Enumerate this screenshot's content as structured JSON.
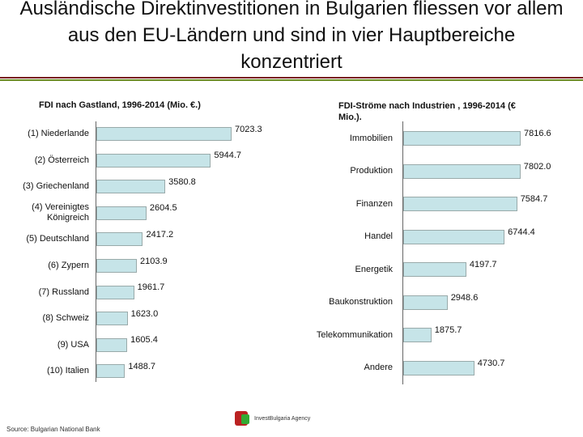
{
  "title": "Ausländische Direktinvestitionen in Bulgarien fliessen vor allem aus den EU-Ländern und sind in vier Hauptbereiche konzentriert",
  "source": "Source: Bulgarian National Bank",
  "logo": "InvestBulgaria Agency",
  "chart_data": [
    {
      "type": "bar",
      "orientation": "horizontal",
      "title": "FDI nach Gastland, 1996-2014 (Mio. €.)",
      "categories": [
        "(1) Niederlande",
        "(2) Österreich",
        "(3) Griechenland",
        "(4) Vereinigtes Königreich",
        "(5) Deutschland",
        "(6) Zypern",
        "(7) Russland",
        "(8) Schweiz",
        "(9) USA",
        "(10) Italien"
      ],
      "values": [
        7023.3,
        5944.7,
        3580.8,
        2604.5,
        2417.2,
        2103.9,
        1961.7,
        1623.0,
        1605.4,
        1488.7
      ],
      "value_labels": [
        "7023.3",
        "5944.7",
        "3580.8",
        "2604.5",
        "2417.2",
        "2103.9",
        "1961.7",
        "1623.0",
        "1605.4",
        "1488.7"
      ],
      "color": "#c6e4e8"
    },
    {
      "type": "bar",
      "orientation": "horizontal",
      "title": "FDI-Ströme nach Industrien , 1996-2014 (€ Mio.).",
      "categories": [
        "Immobilien",
        "Produktion",
        "Finanzen",
        "Handel",
        "Energetik",
        "Baukonstruktion",
        "Telekommunikation",
        "Andere"
      ],
      "values": [
        7816.6,
        7802.0,
        7584.7,
        6744.4,
        4197.7,
        2948.6,
        1875.7,
        4730.7
      ],
      "value_labels": [
        "7816.6",
        "7802.0",
        "7584.7",
        "6744.4",
        "4197.7",
        "2948.6",
        "1875.7",
        "4730.7"
      ],
      "color": "#c6e4e8"
    }
  ]
}
